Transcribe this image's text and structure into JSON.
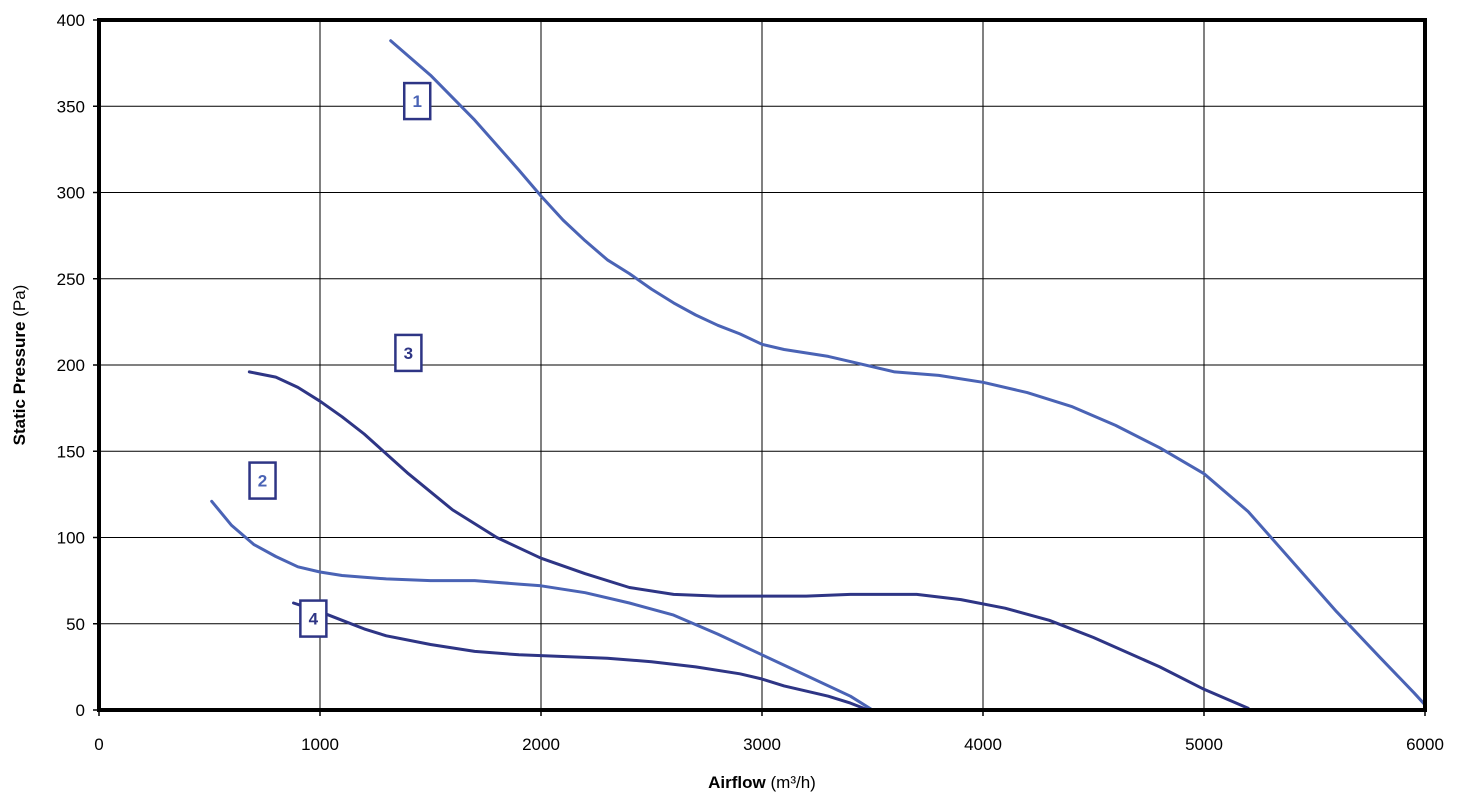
{
  "chart_data": {
    "type": "line",
    "title": "",
    "xlabel": "Airflow",
    "xlabel_unit": "(m³/h)",
    "ylabel": "Static Pressure",
    "ylabel_unit": "(Pa)",
    "xlim": [
      0,
      6000
    ],
    "ylim": [
      0,
      400
    ],
    "x_ticks": [
      0,
      1000,
      2000,
      3000,
      4000,
      5000,
      6000
    ],
    "y_ticks": [
      0,
      50,
      100,
      150,
      200,
      250,
      300,
      350,
      400
    ],
    "grid": true,
    "legend": "none",
    "series": [
      {
        "label": "1",
        "color": "#4a63b5",
        "label_at": [
          1440,
          353
        ],
        "points": [
          [
            1320,
            388
          ],
          [
            1500,
            368
          ],
          [
            1700,
            342
          ],
          [
            1900,
            313
          ],
          [
            2000,
            298
          ],
          [
            2100,
            284
          ],
          [
            2200,
            272
          ],
          [
            2300,
            261
          ],
          [
            2400,
            253
          ],
          [
            2500,
            244
          ],
          [
            2600,
            236
          ],
          [
            2700,
            229
          ],
          [
            2800,
            223
          ],
          [
            2900,
            218
          ],
          [
            3000,
            212
          ],
          [
            3100,
            209
          ],
          [
            3300,
            205
          ],
          [
            3400,
            202
          ],
          [
            3600,
            196
          ],
          [
            3800,
            194
          ],
          [
            4000,
            190
          ],
          [
            4200,
            184
          ],
          [
            4400,
            176
          ],
          [
            4600,
            165
          ],
          [
            4800,
            152
          ],
          [
            5000,
            137
          ],
          [
            5200,
            115
          ],
          [
            5400,
            86
          ],
          [
            5600,
            57
          ],
          [
            5800,
            30
          ],
          [
            5950,
            10
          ],
          [
            6000,
            3
          ]
        ]
      },
      {
        "label": "2",
        "color": "#4a63b5",
        "label_at": [
          740,
          133
        ],
        "points": [
          [
            510,
            121
          ],
          [
            600,
            107
          ],
          [
            700,
            96
          ],
          [
            800,
            89
          ],
          [
            900,
            83
          ],
          [
            1000,
            80
          ],
          [
            1100,
            78
          ],
          [
            1200,
            77
          ],
          [
            1300,
            76
          ],
          [
            1500,
            75
          ],
          [
            1700,
            75
          ],
          [
            1900,
            73
          ],
          [
            2000,
            72
          ],
          [
            2200,
            68
          ],
          [
            2400,
            62
          ],
          [
            2600,
            55
          ],
          [
            2800,
            44
          ],
          [
            3000,
            32
          ],
          [
            3200,
            20
          ],
          [
            3400,
            8
          ],
          [
            3500,
            0
          ]
        ]
      },
      {
        "label": "3",
        "color": "#2e3585",
        "label_at": [
          1400,
          207
        ],
        "points": [
          [
            680,
            196
          ],
          [
            800,
            193
          ],
          [
            900,
            187
          ],
          [
            1000,
            179
          ],
          [
            1100,
            170
          ],
          [
            1200,
            160
          ],
          [
            1400,
            137
          ],
          [
            1600,
            116
          ],
          [
            1800,
            100
          ],
          [
            2000,
            88
          ],
          [
            2200,
            79
          ],
          [
            2400,
            71
          ],
          [
            2600,
            67
          ],
          [
            2800,
            66
          ],
          [
            3000,
            66
          ],
          [
            3200,
            66
          ],
          [
            3400,
            67
          ],
          [
            3700,
            67
          ],
          [
            3900,
            64
          ],
          [
            4100,
            59
          ],
          [
            4300,
            52
          ],
          [
            4500,
            42
          ],
          [
            4800,
            25
          ],
          [
            5000,
            12
          ],
          [
            5200,
            1
          ]
        ]
      },
      {
        "label": "4",
        "color": "#2e3585",
        "label_at": [
          970,
          53
        ],
        "points": [
          [
            880,
            62
          ],
          [
            1000,
            57
          ],
          [
            1100,
            52
          ],
          [
            1200,
            47
          ],
          [
            1300,
            43
          ],
          [
            1500,
            38
          ],
          [
            1700,
            34
          ],
          [
            1900,
            32
          ],
          [
            2100,
            31
          ],
          [
            2300,
            30
          ],
          [
            2500,
            28
          ],
          [
            2700,
            25
          ],
          [
            2900,
            21
          ],
          [
            3000,
            18
          ],
          [
            3100,
            14
          ],
          [
            3300,
            8
          ],
          [
            3400,
            4
          ],
          [
            3480,
            0
          ]
        ]
      }
    ]
  }
}
